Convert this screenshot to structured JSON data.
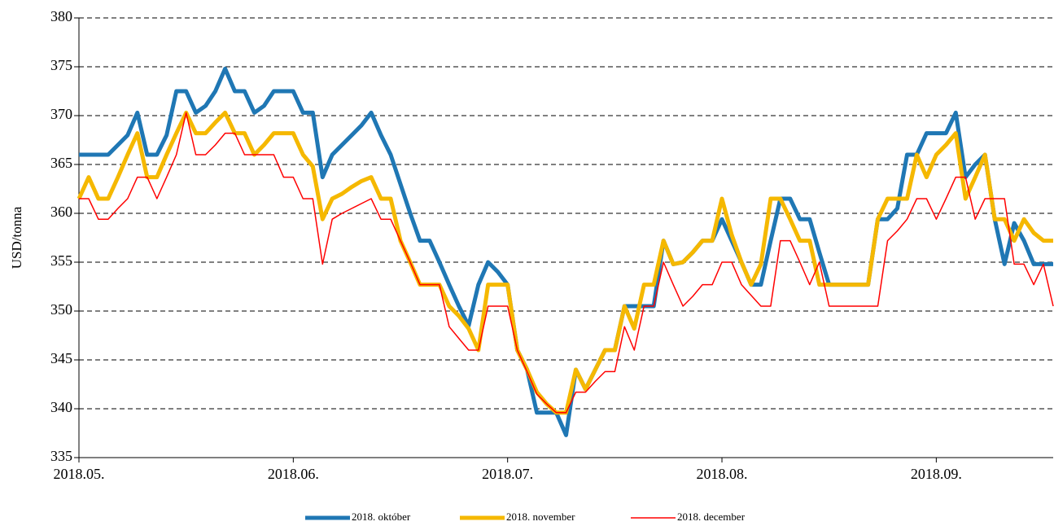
{
  "chart_data": {
    "type": "line",
    "y_label": "USD/tonna",
    "categories": [
      "2018.05.",
      null,
      null,
      null,
      null,
      null,
      null,
      null,
      null,
      null,
      null,
      null,
      null,
      null,
      null,
      null,
      null,
      null,
      null,
      null,
      null,
      null,
      "2018.06.",
      null,
      null,
      null,
      null,
      null,
      null,
      null,
      null,
      null,
      null,
      null,
      null,
      null,
      null,
      null,
      null,
      null,
      null,
      null,
      null,
      null,
      "2018.07.",
      null,
      null,
      null,
      null,
      null,
      null,
      null,
      null,
      null,
      null,
      null,
      null,
      null,
      null,
      null,
      null,
      null,
      null,
      null,
      null,
      null,
      "2018.08.",
      null,
      null,
      null,
      null,
      null,
      null,
      null,
      null,
      null,
      null,
      null,
      null,
      null,
      null,
      null,
      null,
      null,
      null,
      null,
      null,
      null,
      "2018.09.",
      null,
      null,
      null,
      null,
      null,
      null,
      null,
      null,
      null,
      null,
      null,
      null
    ],
    "series": [
      {
        "name": "2018. október",
        "color": "#1f77b4",
        "width": 5,
        "values": [
          366,
          366,
          366,
          366,
          367,
          368,
          370.3,
          366,
          366,
          368,
          372.5,
          372.5,
          370.3,
          371,
          372.5,
          374.8,
          372.5,
          372.5,
          370.3,
          371,
          372.5,
          372.5,
          372.5,
          370.3,
          370.3,
          363.7,
          366,
          367,
          368,
          369,
          370.3,
          368,
          366,
          363,
          360,
          357.2,
          357.2,
          355,
          352.7,
          350.5,
          348.5,
          352.7,
          355,
          354,
          352.7,
          346,
          344,
          339.6,
          339.6,
          339.6,
          337.3,
          344,
          342,
          344,
          346,
          346,
          350.5,
          350.5,
          350.5,
          350.5,
          357.2,
          354.8,
          355,
          356,
          357.2,
          357.2,
          359.4,
          357.2,
          355,
          352.7,
          352.7,
          357.2,
          361.5,
          361.5,
          359.4,
          359.4,
          356,
          352.7,
          352.7,
          352.7,
          352.7,
          352.7,
          359.4,
          359.4,
          360.5,
          366,
          366,
          368.2,
          368.2,
          368.2,
          370.3,
          363.7,
          365,
          366,
          359.4,
          354.8,
          359,
          357.2,
          354.8,
          354.8,
          354.8
        ]
      },
      {
        "name": "2018. november",
        "color": "#f5b800",
        "width": 5,
        "values": [
          361.5,
          363.7,
          361.5,
          361.5,
          363.7,
          366,
          368.2,
          363.7,
          363.7,
          366,
          368.2,
          370.3,
          368.2,
          368.2,
          369.3,
          370.3,
          368.2,
          368.2,
          366,
          367,
          368.2,
          368.2,
          368.2,
          366,
          364.8,
          359.4,
          361.5,
          362,
          362.7,
          363.3,
          363.7,
          361.5,
          361.5,
          357.2,
          355,
          352.7,
          352.7,
          352.7,
          350.5,
          349.5,
          348.2,
          346,
          352.7,
          352.7,
          352.7,
          346,
          344,
          341.7,
          340.5,
          339.6,
          339.6,
          344,
          342,
          344,
          346,
          346,
          350.5,
          348.2,
          352.7,
          352.7,
          357.2,
          354.8,
          355,
          356,
          357.2,
          357.2,
          361.5,
          357.8,
          355,
          352.7,
          354.8,
          361.5,
          361.5,
          359.4,
          357.2,
          357.2,
          352.7,
          352.7,
          352.7,
          352.7,
          352.7,
          352.7,
          359.4,
          361.5,
          361.5,
          361.5,
          366,
          363.7,
          366,
          367,
          368.2,
          361.5,
          363.7,
          366,
          359.4,
          359.4,
          357.2,
          359.4,
          358,
          357.2,
          357.2
        ]
      },
      {
        "name": "2018. december",
        "color": "#ff0000",
        "width": 1.5,
        "values": [
          361.5,
          361.5,
          359.4,
          359.4,
          360.5,
          361.5,
          363.7,
          363.7,
          361.5,
          363.7,
          366,
          370.3,
          366,
          366,
          367,
          368.2,
          368.2,
          366,
          366,
          366,
          366,
          363.7,
          363.7,
          361.5,
          361.5,
          354.8,
          359.4,
          360,
          360.5,
          361,
          361.5,
          359.4,
          359.4,
          357.2,
          355,
          352.7,
          352.7,
          352.7,
          348.4,
          347.2,
          346,
          346,
          350.5,
          350.5,
          350.5,
          346,
          343.8,
          341.5,
          340.5,
          339.6,
          339.6,
          341.7,
          341.7,
          342.8,
          343.8,
          343.8,
          348.4,
          346,
          350.5,
          350.5,
          355,
          352.7,
          350.5,
          351.5,
          352.7,
          352.7,
          355,
          355,
          352.7,
          351.6,
          350.5,
          350.5,
          357.2,
          357.2,
          355,
          352.7,
          355,
          350.5,
          350.5,
          350.5,
          350.5,
          350.5,
          350.5,
          357.2,
          358.2,
          359.4,
          361.5,
          361.5,
          359.4,
          361.5,
          363.7,
          363.7,
          359.4,
          361.5,
          361.5,
          361.5,
          354.8,
          354.8,
          352.7,
          354.8,
          350.5
        ]
      }
    ],
    "ylim": [
      335,
      380
    ],
    "yticks": [
      335,
      340,
      345,
      350,
      355,
      360,
      365,
      370,
      375,
      380
    ],
    "grid": true,
    "legend": "bottom"
  }
}
